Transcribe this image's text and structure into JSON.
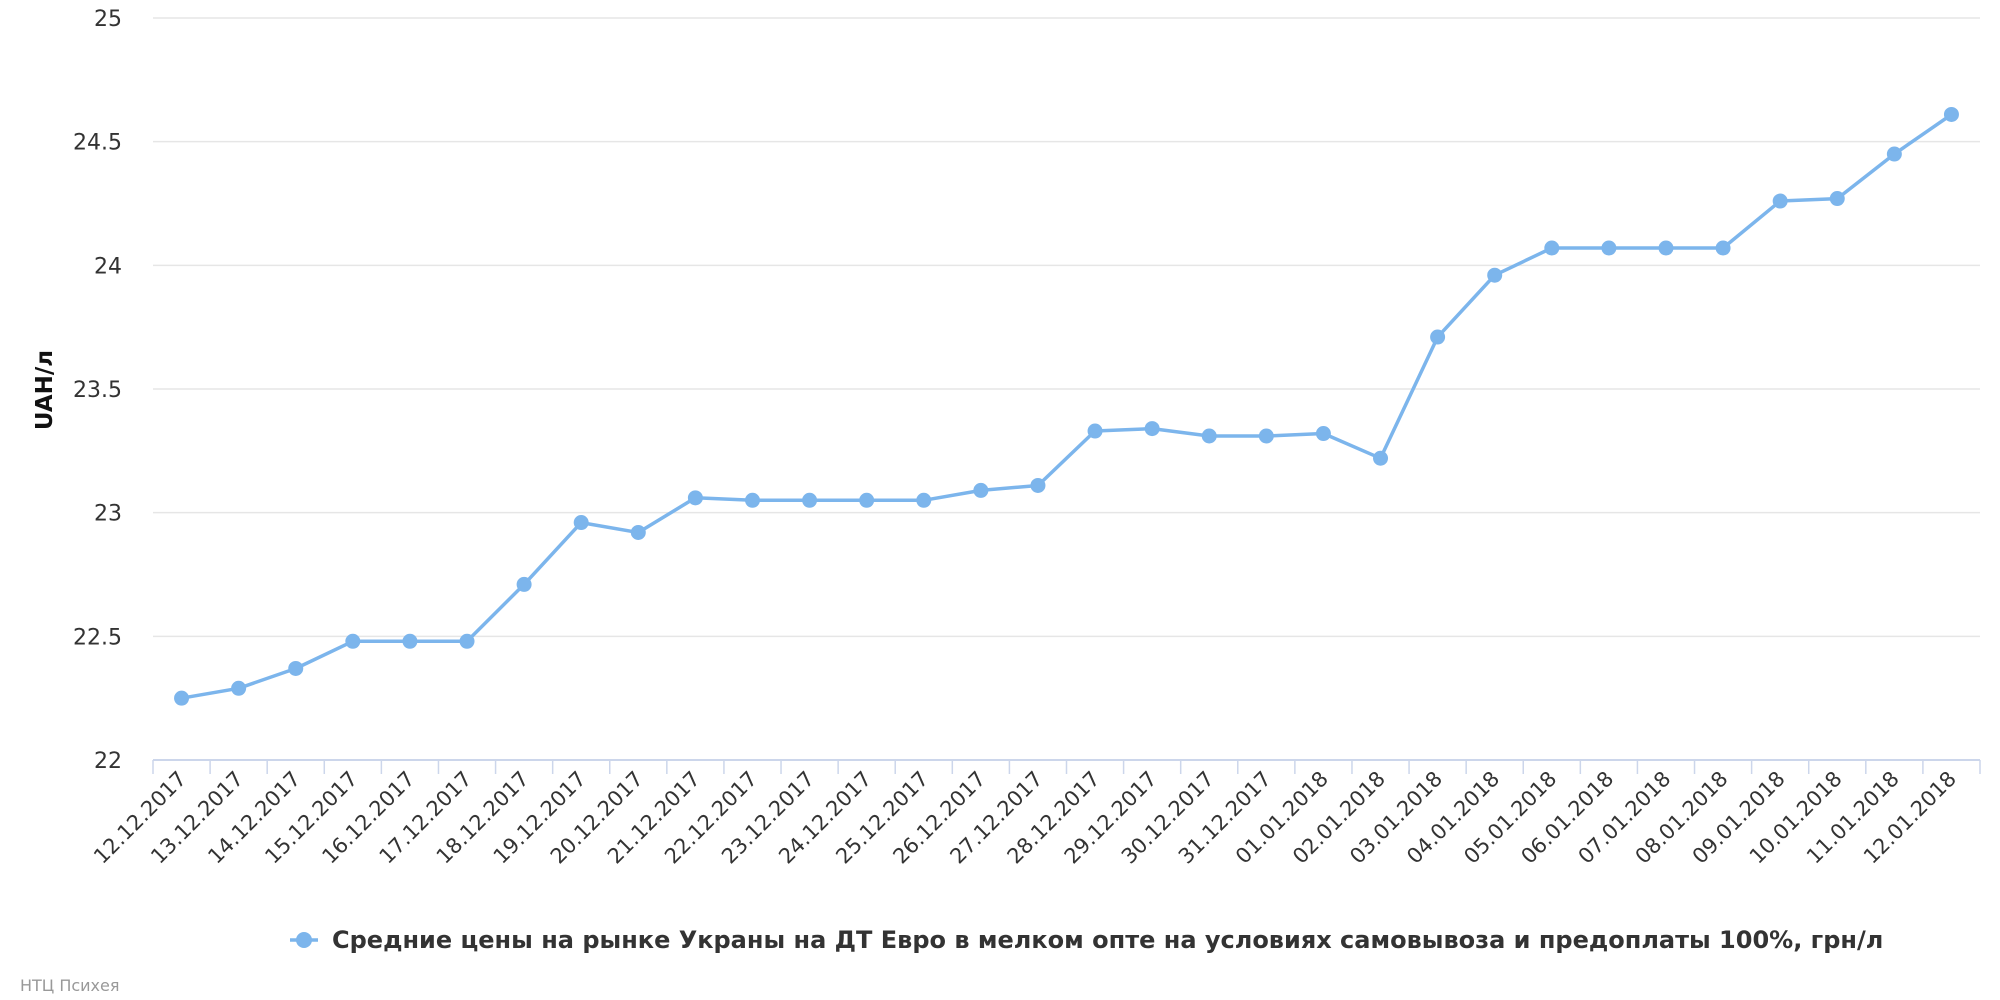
{
  "chart_data": {
    "type": "line",
    "title": "",
    "xlabel": "",
    "ylabel": "UAH/л",
    "ylim": [
      22,
      25
    ],
    "y_ticks": [
      "22",
      "22.5",
      "23",
      "23.5",
      "24",
      "24.5",
      "25"
    ],
    "grid": "horizontal",
    "legend_position": "bottom-center",
    "categories": [
      "12.12.2017",
      "13.12.2017",
      "14.12.2017",
      "15.12.2017",
      "16.12.2017",
      "17.12.2017",
      "18.12.2017",
      "19.12.2017",
      "20.12.2017",
      "21.12.2017",
      "22.12.2017",
      "23.12.2017",
      "24.12.2017",
      "25.12.2017",
      "26.12.2017",
      "27.12.2017",
      "28.12.2017",
      "29.12.2017",
      "30.12.2017",
      "31.12.2017",
      "01.01.2018",
      "02.01.2018",
      "03.01.2018",
      "04.01.2018",
      "05.01.2018",
      "06.01.2018",
      "07.01.2018",
      "08.01.2018",
      "09.01.2018",
      "10.01.2018",
      "11.01.2018",
      "12.01.2018"
    ],
    "series": [
      {
        "name": "Средние цены на рынке Украны на ДТ Евро в мелком опте на условиях самовывоза и предоплаты 100%, грн/л",
        "color": "#7cb5ec",
        "values": [
          22.25,
          22.29,
          22.37,
          22.48,
          22.48,
          22.48,
          22.71,
          22.96,
          22.92,
          23.06,
          23.05,
          23.05,
          23.05,
          23.05,
          23.09,
          23.11,
          23.33,
          23.34,
          23.31,
          23.31,
          23.32,
          23.22,
          23.71,
          23.96,
          24.07,
          24.07,
          24.07,
          24.07,
          24.26,
          24.27,
          24.45,
          24.61
        ]
      }
    ]
  },
  "credits": "НТЦ Психея"
}
